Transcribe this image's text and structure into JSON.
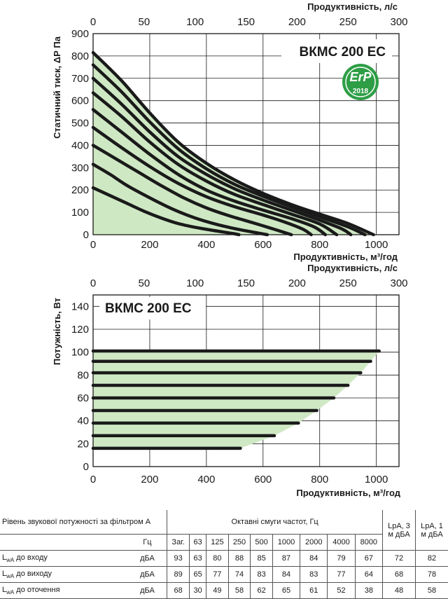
{
  "chart_data": [
    {
      "type": "line",
      "title": "ВКМС 200 ЕС",
      "xlabel": "Продуктивність, м³/год",
      "x2label": "Продуктивність, л/с",
      "ylabel": "Статичний тиск, ΔР Па",
      "xlim": [
        0,
        1080
      ],
      "ylim": [
        0,
        900
      ],
      "x_ticks": [
        "0",
        "200",
        "400",
        "600",
        "800",
        "1000"
      ],
      "x2_ticks": [
        "0",
        "50",
        "100",
        "150",
        "200",
        "250",
        "300"
      ],
      "y_ticks": [
        "0",
        "100",
        "200",
        "300",
        "400",
        "500",
        "600",
        "700",
        "800",
        "900"
      ],
      "grid": true,
      "badge": {
        "text": "ErP",
        "year": "2018",
        "color": "#2e9e46"
      },
      "fill_color": "#cfe8c4",
      "line_color": "#1a1a1a",
      "series": [
        {
          "x": [
            0,
            60,
            120,
            180,
            240,
            300,
            360,
            420,
            460,
            500,
            515
          ],
          "y": [
            210,
            175,
            140,
            105,
            75,
            50,
            33,
            20,
            12,
            4,
            0
          ]
        },
        {
          "x": [
            0,
            60,
            120,
            200,
            280,
            360,
            440,
            520,
            580,
            615
          ],
          "y": [
            315,
            270,
            220,
            165,
            115,
            75,
            45,
            22,
            8,
            0
          ]
        },
        {
          "x": [
            0,
            80,
            160,
            240,
            320,
            400,
            480,
            560,
            620,
            680,
            700
          ],
          "y": [
            400,
            340,
            280,
            220,
            165,
            120,
            85,
            55,
            32,
            8,
            0
          ]
        },
        {
          "x": [
            0,
            100,
            200,
            300,
            400,
            500,
            600,
            680,
            740,
            770
          ],
          "y": [
            480,
            390,
            305,
            230,
            170,
            125,
            88,
            55,
            25,
            0
          ]
        },
        {
          "x": [
            0,
            100,
            200,
            300,
            400,
            500,
            600,
            700,
            780,
            820
          ],
          "y": [
            560,
            460,
            360,
            270,
            200,
            150,
            110,
            72,
            35,
            0
          ]
        },
        {
          "x": [
            0,
            100,
            200,
            300,
            400,
            500,
            600,
            700,
            800,
            860
          ],
          "y": [
            635,
            530,
            415,
            315,
            240,
            180,
            135,
            92,
            48,
            0
          ]
        },
        {
          "x": [
            0,
            100,
            200,
            300,
            400,
            500,
            600,
            700,
            800,
            880,
            910
          ],
          "y": [
            700,
            585,
            460,
            350,
            270,
            205,
            155,
            110,
            65,
            25,
            0
          ]
        },
        {
          "x": [
            0,
            100,
            200,
            300,
            400,
            500,
            600,
            700,
            800,
            900,
            960
          ],
          "y": [
            760,
            640,
            505,
            385,
            295,
            225,
            172,
            125,
            80,
            35,
            0
          ]
        },
        {
          "x": [
            0,
            100,
            200,
            300,
            400,
            500,
            600,
            700,
            800,
            900,
            990
          ],
          "y": [
            815,
            690,
            545,
            415,
            320,
            245,
            185,
            135,
            92,
            50,
            0
          ]
        }
      ]
    },
    {
      "type": "line",
      "title": "ВКМС 200 ЕС",
      "xlabel": "Продуктивність, м³/год",
      "x2label": "Продуктивність, л/с",
      "ylabel": "Потужність, Вт",
      "xlim": [
        0,
        1080
      ],
      "ylim": [
        0,
        150
      ],
      "x_ticks": [
        "0",
        "200",
        "400",
        "600",
        "800",
        "1000"
      ],
      "x2_ticks": [
        "0",
        "50",
        "100",
        "150",
        "200",
        "250",
        "300"
      ],
      "y_ticks": [
        "0",
        "20",
        "40",
        "60",
        "80",
        "100",
        "120",
        "140"
      ],
      "grid": true,
      "fill_color": "#cfe8c4",
      "line_color": "#1a1a1a",
      "series": [
        {
          "x": [
            0,
            520
          ],
          "y": [
            16,
            16
          ]
        },
        {
          "x": [
            0,
            640
          ],
          "y": [
            27,
            27
          ]
        },
        {
          "x": [
            0,
            725
          ],
          "y": [
            38,
            38
          ]
        },
        {
          "x": [
            0,
            790
          ],
          "y": [
            49,
            49
          ]
        },
        {
          "x": [
            0,
            850
          ],
          "y": [
            60,
            60
          ]
        },
        {
          "x": [
            0,
            900
          ],
          "y": [
            71,
            71
          ]
        },
        {
          "x": [
            0,
            945
          ],
          "y": [
            82,
            82
          ]
        },
        {
          "x": [
            0,
            980
          ],
          "y": [
            92,
            92
          ]
        },
        {
          "x": [
            0,
            1010
          ],
          "y": [
            101,
            101
          ]
        }
      ]
    }
  ],
  "sound_table": {
    "param_label": "Рівень звукової потужності за фільтром А",
    "hz_label": "Гц",
    "bands_label": "Октавні смуги частот, Гц",
    "lpa3_label": "LpA, 3 м дБА",
    "lpa1_label": "LpA, 1 м дБА",
    "freqs": [
      "Заг.",
      "63",
      "125",
      "250",
      "500",
      "1000",
      "2000",
      "4000",
      "8000"
    ],
    "rows": [
      {
        "sym": "L",
        "sub": "wA",
        "label": " до входу",
        "unit": "дБА",
        "values": [
          "93",
          "63",
          "80",
          "88",
          "85",
          "87",
          "84",
          "79",
          "67"
        ],
        "lpa3": "72",
        "lpa1": "82"
      },
      {
        "sym": "L",
        "sub": "wA",
        "label": " до виходу",
        "unit": "дБА",
        "values": [
          "89",
          "65",
          "77",
          "74",
          "83",
          "84",
          "83",
          "77",
          "64"
        ],
        "lpa3": "68",
        "lpa1": "78"
      },
      {
        "sym": "L",
        "sub": "wA",
        "label": " до оточення",
        "unit": "дБА",
        "values": [
          "68",
          "30",
          "49",
          "58",
          "62",
          "65",
          "61",
          "52",
          "38"
        ],
        "lpa3": "48",
        "lpa1": "58"
      }
    ]
  }
}
